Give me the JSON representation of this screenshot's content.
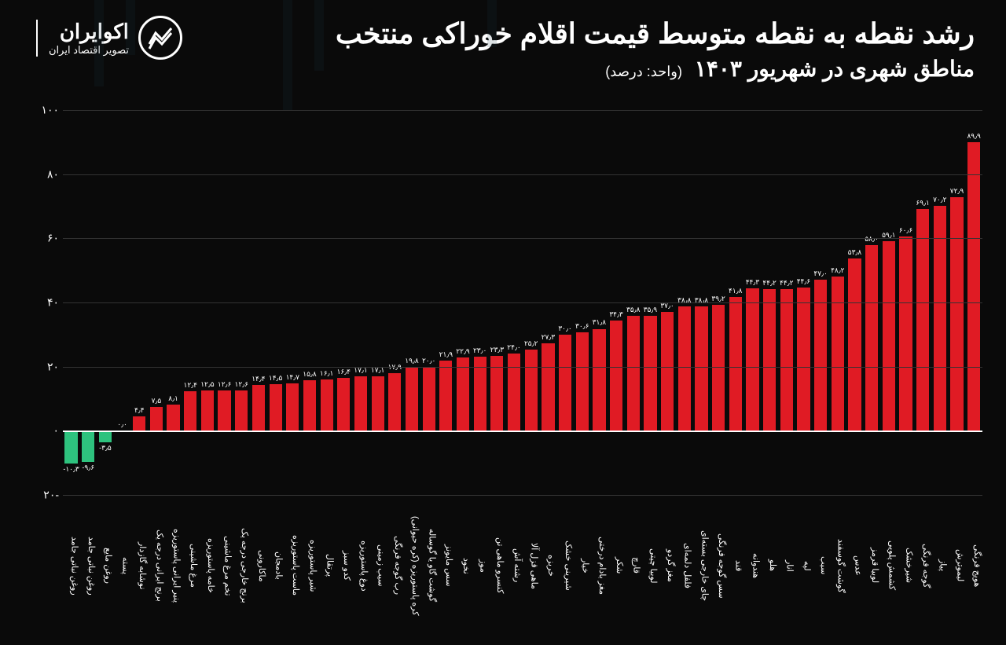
{
  "header": {
    "title_line1": "رشد نقطه به نقطه متوسط قیمت اقلام خوراکی منتخب",
    "title_line2": "مناطق شهری در شهریور ۱۴۰۳",
    "unit": "(واحد: درصد)",
    "brand_name": "اکوایران",
    "brand_tagline": "تصویر اقتصاد ایران"
  },
  "chart": {
    "type": "bar",
    "ymin": -20,
    "ymax": 100,
    "yticks": [
      -20,
      0,
      20,
      40,
      60,
      80,
      100
    ],
    "ytick_labels": [
      "۲۰-",
      "۰",
      "۲۰",
      "۴۰",
      "۶۰",
      "۸۰",
      "۱۰۰"
    ],
    "positive_color": "#e01b24",
    "negative_color": "#2ec27e",
    "zero_color": "#0a0a0a",
    "grid_color": "#333333",
    "background_color": "#0a0a0a",
    "axis_color": "#ffffff",
    "value_font_size": 9,
    "label_font_size": 11,
    "bar_width_pct": 75,
    "data": [
      {
        "label": "هویج فرنگی",
        "value": 89.9,
        "txt": "۸۹٫۹"
      },
      {
        "label": "لیموترش",
        "value": 72.9,
        "txt": "۷۲٫۹"
      },
      {
        "label": "پیاز",
        "value": 70.2,
        "txt": "۷۰٫۲"
      },
      {
        "label": "گوجه فرنگی",
        "value": 69.1,
        "txt": "۶۹٫۱"
      },
      {
        "label": "شیرخشک",
        "value": 60.6,
        "txt": "۶۰٫۶"
      },
      {
        "label": "کشمش پلویی",
        "value": 59.1,
        "txt": "۵۹٫۱"
      },
      {
        "label": "لوبیا قرمز",
        "value": 58.0,
        "txt": "۵۸٫۰"
      },
      {
        "label": "عدس",
        "value": 53.8,
        "txt": "۵۳٫۸"
      },
      {
        "label": "گوشت گوسفند",
        "value": 48.2,
        "txt": "۴۸٫۲"
      },
      {
        "label": "سیب",
        "value": 47.0,
        "txt": "۴۷٫۰"
      },
      {
        "label": "لپه",
        "value": 44.6,
        "txt": "۴۴٫۶"
      },
      {
        "label": "انار",
        "value": 44.2,
        "txt": "۴۴٫۲"
      },
      {
        "label": "هلو",
        "value": 44.2,
        "txt": "۴۴٫۲"
      },
      {
        "label": "هندوانه",
        "value": 44.3,
        "txt": "۴۴٫۳"
      },
      {
        "label": "قند",
        "value": 41.8,
        "txt": "۴۱٫۸"
      },
      {
        "label": "سس گوجه فرنگی",
        "value": 39.2,
        "txt": "۳۹٫۲"
      },
      {
        "label": "چای خارجی بسته‌ای",
        "value": 38.8,
        "txt": "۳۸٫۸"
      },
      {
        "label": "فلفل دلمه‌ای",
        "value": 38.8,
        "txt": "۳۸٫۸"
      },
      {
        "label": "مغز گردو",
        "value": 37.0,
        "txt": "۳۷٫۰"
      },
      {
        "label": "لوبیا چیتی",
        "value": 35.9,
        "txt": "۳۵٫۹"
      },
      {
        "label": "قارچ",
        "value": 35.8,
        "txt": "۳۵٫۸"
      },
      {
        "label": "شکر",
        "value": 34.3,
        "txt": "۳۴٫۳"
      },
      {
        "label": "مغز بادام درختی",
        "value": 31.8,
        "txt": "۳۱٫۸"
      },
      {
        "label": "خیار",
        "value": 30.6,
        "txt": "۳۰٫۶"
      },
      {
        "label": "شیرینی خشک",
        "value": 30.0,
        "txt": "۳۰٫۰"
      },
      {
        "label": "خربزه",
        "value": 27.3,
        "txt": "۲۷٫۳"
      },
      {
        "label": "ماهی قزل آلا",
        "value": 25.2,
        "txt": "۲۵٫۲"
      },
      {
        "label": "رشته آش",
        "value": 24.0,
        "txt": "۲۴٫۰"
      },
      {
        "label": "کنسرو ماهی تن",
        "value": 23.3,
        "txt": "۲۳٫۳"
      },
      {
        "label": "موز",
        "value": 23.0,
        "txt": "۲۳٫۰"
      },
      {
        "label": "نخود",
        "value": 22.9,
        "txt": "۲۲٫۹"
      },
      {
        "label": "سس مایونز",
        "value": 21.9,
        "txt": "۲۱٫۹"
      },
      {
        "label": "گوشت گاو یا گوساله",
        "value": 20.0,
        "txt": "۲۰٫۰"
      },
      {
        "label": "کره پاستوریزه (کره حیوانی)",
        "value": 19.8,
        "txt": "۱۹٫۸"
      },
      {
        "label": "رب گوجه فرنگی",
        "value": 17.9,
        "txt": "۱۷٫۹"
      },
      {
        "label": "سیب زمینی",
        "value": 17.1,
        "txt": "۱۷٫۱"
      },
      {
        "label": "دوغ پاستوریزه",
        "value": 17.1,
        "txt": "۱۷٫۱"
      },
      {
        "label": "کدو سبز",
        "value": 16.4,
        "txt": "۱۶٫۴"
      },
      {
        "label": "پرتقال",
        "value": 16.1,
        "txt": "۱۶٫۱"
      },
      {
        "label": "شیر پاستوریزه",
        "value": 15.8,
        "txt": "۱۵٫۸"
      },
      {
        "label": "ماست پاستوریزه",
        "value": 14.7,
        "txt": "۱۴٫۷"
      },
      {
        "label": "بادمجان",
        "value": 14.5,
        "txt": "۱۴٫۵"
      },
      {
        "label": "ماکارونی",
        "value": 14.4,
        "txt": "۱۴٫۴"
      },
      {
        "label": "برنج خارجی درجه یک",
        "value": 12.6,
        "txt": "۱۲٫۶"
      },
      {
        "label": "تخم مرغ ماشینی",
        "value": 12.6,
        "txt": "۱۲٫۶"
      },
      {
        "label": "خامه پاستوریزه",
        "value": 12.5,
        "txt": "۱۲٫۵"
      },
      {
        "label": "مرغ ماشینی",
        "value": 12.4,
        "txt": "۱۲٫۴"
      },
      {
        "label": "پنیر ایرانی پاستوریزه",
        "value": 8.1,
        "txt": "۸٫۱"
      },
      {
        "label": "برنج ایرانی درجه یک",
        "value": 7.5,
        "txt": "۷٫۵"
      },
      {
        "label": "نوشابه گازدار",
        "value": 4.4,
        "txt": "۴٫۴"
      },
      {
        "label": "پسته",
        "value": 0.0,
        "txt": "۰٫۰"
      },
      {
        "label": "روغن مایع",
        "value": -3.5,
        "txt": "-۳٫۵"
      },
      {
        "label": "روغن نباتی جامد",
        "value": -9.6,
        "txt": "-۹٫۶"
      },
      {
        "label": "روغن نباتی جامد",
        "value": -10.3,
        "txt": "-۱۰٫۳"
      }
    ]
  }
}
